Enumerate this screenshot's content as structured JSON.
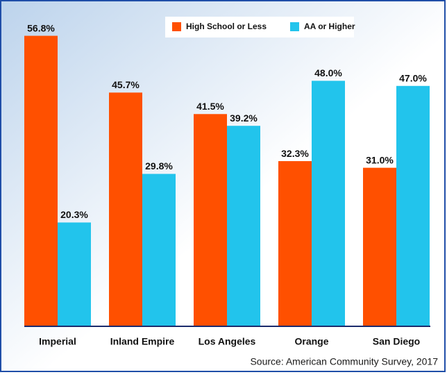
{
  "chart_data": {
    "type": "bar",
    "categories": [
      "Imperial",
      "Inland Empire",
      "Los Angeles",
      "Orange",
      "San Diego"
    ],
    "series": [
      {
        "name": "High School or Less",
        "color": "#ff5000",
        "values": [
          56.8,
          45.7,
          41.5,
          32.3,
          31.0
        ],
        "value_labels": [
          "56.8%",
          "45.7%",
          "41.5%",
          "32.3%",
          "31.0%"
        ]
      },
      {
        "name": "AA or Higher",
        "color": "#22c4ec",
        "values": [
          20.3,
          29.8,
          39.2,
          48.0,
          47.0
        ],
        "value_labels": [
          "20.3%",
          "29.8%",
          "39.2%",
          "48.0%",
          "47.0%"
        ]
      }
    ],
    "ylim": [
      0,
      60
    ],
    "legend": "top",
    "source": "Source:  American Community Survey, 2017"
  }
}
